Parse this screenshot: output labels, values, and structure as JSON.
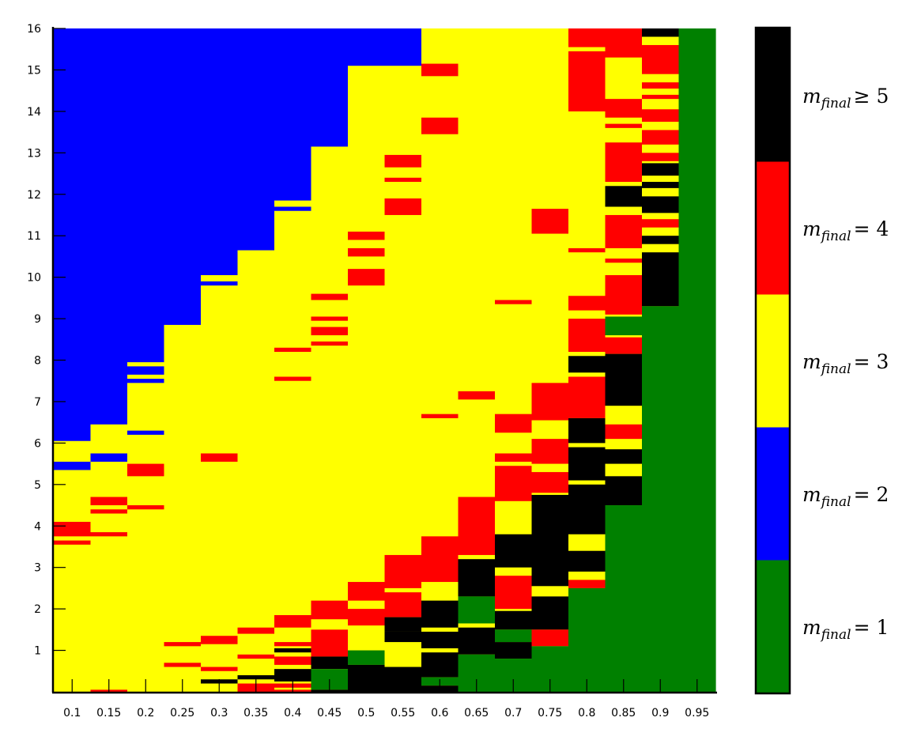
{
  "chart_data": {
    "type": "heatmap",
    "title": "",
    "xlabel": "",
    "ylabel": "",
    "x_ticks": [
      "0.1",
      "0.15",
      "0.2",
      "0.25",
      "0.3",
      "0.35",
      "0.4",
      "0.45",
      "0.5",
      "0.55",
      "0.6",
      "0.65",
      "0.7",
      "0.75",
      "0.8",
      "0.85",
      "0.9",
      "0.95"
    ],
    "y_ticks": [
      "1",
      "2",
      "3",
      "4",
      "5",
      "6",
      "7",
      "8",
      "9",
      "10",
      "11",
      "12",
      "13",
      "14",
      "15",
      "16"
    ],
    "ylim": [
      0,
      16
    ],
    "colorbar": {
      "levels": [
        1,
        2,
        3,
        4,
        5
      ],
      "labels": [
        {
          "main": "m",
          "sub": "final",
          "rel": "= 1"
        },
        {
          "main": "m",
          "sub": "final",
          "rel": "= 2"
        },
        {
          "main": "m",
          "sub": "final",
          "rel": "= 3"
        },
        {
          "main": "m",
          "sub": "final",
          "rel": "= 4"
        },
        {
          "main": "m",
          "sub": "final",
          "rel": "≥ 5"
        }
      ],
      "colors": [
        "#008000",
        "#0000ff",
        "#ffff00",
        "#ff0000",
        "#000000"
      ]
    },
    "columns": [
      {
        "x": "0.1",
        "base": 2,
        "bands": [
          [
            6.05,
            16,
            1
          ],
          [
            5.35,
            5.55,
            1
          ],
          [
            3.75,
            4.1,
            3
          ],
          [
            3.55,
            3.65,
            3
          ]
        ]
      },
      {
        "x": "0.15",
        "base": 2,
        "bands": [
          [
            6.45,
            16,
            1
          ],
          [
            6.3,
            6.4,
            2
          ],
          [
            5.55,
            5.75,
            1
          ],
          [
            4.5,
            4.7,
            3
          ],
          [
            4.3,
            4.4,
            3
          ],
          [
            3.75,
            3.85,
            3
          ],
          [
            0,
            0.05,
            3
          ]
        ]
      },
      {
        "x": "0.2",
        "base": 2,
        "bands": [
          [
            7.95,
            16,
            1
          ],
          [
            7.65,
            7.85,
            1
          ],
          [
            7.45,
            7.55,
            1
          ],
          [
            6.2,
            6.3,
            1
          ],
          [
            5.2,
            5.5,
            3
          ],
          [
            4.4,
            4.5,
            3
          ]
        ]
      },
      {
        "x": "0.25",
        "base": 2,
        "bands": [
          [
            8.85,
            16,
            1
          ],
          [
            1.1,
            1.2,
            3
          ],
          [
            0.6,
            0.7,
            3
          ]
        ]
      },
      {
        "x": "0.3",
        "base": 2,
        "bands": [
          [
            10.05,
            16,
            1
          ],
          [
            9.8,
            9.9,
            1
          ],
          [
            5.55,
            5.75,
            3
          ],
          [
            1.15,
            1.35,
            3
          ],
          [
            0.5,
            0.6,
            3
          ],
          [
            0.2,
            0.3,
            4
          ],
          [
            0.05,
            0.2,
            2
          ]
        ]
      },
      {
        "x": "0.35",
        "base": 2,
        "bands": [
          [
            10.65,
            16,
            1
          ],
          [
            1.4,
            1.55,
            3
          ],
          [
            0.8,
            0.9,
            3
          ],
          [
            0.3,
            0.4,
            4
          ],
          [
            0,
            0.2,
            3
          ]
        ]
      },
      {
        "x": "0.4",
        "base": 2,
        "bands": [
          [
            11.85,
            16,
            1
          ],
          [
            11.6,
            11.7,
            1
          ],
          [
            8.2,
            8.3,
            3
          ],
          [
            7.5,
            7.6,
            3
          ],
          [
            1.55,
            1.85,
            3
          ],
          [
            1.1,
            1.2,
            3
          ],
          [
            0.95,
            1.05,
            4
          ],
          [
            0.65,
            0.85,
            3
          ],
          [
            0.25,
            0.55,
            4
          ],
          [
            0.1,
            0.2,
            3
          ],
          [
            0,
            0.05,
            3
          ]
        ]
      },
      {
        "x": "0.45",
        "base": 2,
        "bands": [
          [
            13.15,
            16,
            1
          ],
          [
            9.45,
            9.6,
            3
          ],
          [
            8.95,
            9.05,
            3
          ],
          [
            8.6,
            8.8,
            3
          ],
          [
            8.35,
            8.45,
            3
          ],
          [
            1.75,
            2.2,
            3
          ],
          [
            0.85,
            1.5,
            3
          ],
          [
            0.55,
            0.85,
            4
          ],
          [
            0.05,
            0.55,
            0
          ],
          [
            0,
            0.05,
            4
          ]
        ]
      },
      {
        "x": "0.5",
        "base": 2,
        "bands": [
          [
            15.1,
            16,
            1
          ],
          [
            10.9,
            11.1,
            3
          ],
          [
            10.5,
            10.7,
            3
          ],
          [
            9.8,
            10.2,
            3
          ],
          [
            2.2,
            2.65,
            3
          ],
          [
            1.6,
            2.0,
            3
          ],
          [
            0.65,
            1.0,
            0
          ],
          [
            0,
            0.65,
            4
          ]
        ]
      },
      {
        "x": "0.55",
        "base": 2,
        "bands": [
          [
            15.1,
            16,
            1
          ],
          [
            12.65,
            12.95,
            3
          ],
          [
            12.3,
            12.4,
            3
          ],
          [
            11.5,
            11.9,
            3
          ],
          [
            2.5,
            3.3,
            3
          ],
          [
            1.8,
            2.4,
            3
          ],
          [
            1.45,
            1.8,
            4
          ],
          [
            1.2,
            1.45,
            4
          ],
          [
            0,
            0.6,
            4
          ]
        ]
      },
      {
        "x": "0.6",
        "base": 2,
        "bands": [
          [
            14.85,
            15.15,
            3
          ],
          [
            13.45,
            13.85,
            3
          ],
          [
            6.6,
            6.7,
            3
          ],
          [
            2.65,
            3.75,
            3
          ],
          [
            1.55,
            2.2,
            4
          ],
          [
            1.05,
            1.45,
            4
          ],
          [
            0.35,
            0.95,
            4
          ],
          [
            0.15,
            0.35,
            0
          ],
          [
            0,
            0.15,
            4
          ]
        ]
      },
      {
        "x": "0.65",
        "base": 2,
        "bands": [
          [
            7.05,
            7.25,
            3
          ],
          [
            3.3,
            4.7,
            3
          ],
          [
            2.3,
            3.2,
            4
          ],
          [
            1.65,
            2.3,
            0
          ],
          [
            0.9,
            1.55,
            4
          ],
          [
            0,
            0.9,
            0
          ]
        ]
      },
      {
        "x": "0.7",
        "base": 2,
        "bands": [
          [
            9.35,
            9.45,
            3
          ],
          [
            6.25,
            6.7,
            3
          ],
          [
            5.55,
            5.75,
            3
          ],
          [
            4.6,
            5.45,
            3
          ],
          [
            3.0,
            3.8,
            4
          ],
          [
            2.0,
            2.8,
            3
          ],
          [
            1.5,
            1.95,
            4
          ],
          [
            1.2,
            1.5,
            0
          ],
          [
            0.8,
            1.2,
            4
          ],
          [
            0,
            0.8,
            0
          ]
        ]
      },
      {
        "x": "0.75",
        "base": 2,
        "bands": [
          [
            11.05,
            11.65,
            3
          ],
          [
            6.55,
            7.45,
            3
          ],
          [
            5.5,
            6.1,
            3
          ],
          [
            4.8,
            5.3,
            3
          ],
          [
            2.55,
            4.75,
            4
          ],
          [
            1.5,
            2.3,
            4
          ],
          [
            1.1,
            1.5,
            3
          ],
          [
            0,
            1.1,
            0
          ]
        ]
      },
      {
        "x": "0.8",
        "base": 2,
        "bands": [
          [
            14.0,
            16,
            3
          ],
          [
            15.45,
            15.55,
            2
          ],
          [
            10.6,
            10.7,
            3
          ],
          [
            9.2,
            9.55,
            3
          ],
          [
            8.2,
            9.0,
            3
          ],
          [
            7.7,
            8.1,
            4
          ],
          [
            6.6,
            7.6,
            3
          ],
          [
            6.0,
            6.6,
            4
          ],
          [
            5.1,
            5.9,
            4
          ],
          [
            3.8,
            5.0,
            4
          ],
          [
            2.9,
            3.4,
            4
          ],
          [
            2.5,
            2.7,
            3
          ],
          [
            0,
            2.5,
            0
          ]
        ]
      },
      {
        "x": "0.85",
        "base": 2,
        "bands": [
          [
            15.3,
            16,
            3
          ],
          [
            13.85,
            14.3,
            3
          ],
          [
            13.6,
            13.7,
            3
          ],
          [
            12.3,
            13.25,
            3
          ],
          [
            11.7,
            12.2,
            4
          ],
          [
            10.7,
            11.5,
            3
          ],
          [
            10.35,
            10.45,
            3
          ],
          [
            9.1,
            10.05,
            3
          ],
          [
            8.6,
            9.05,
            0
          ],
          [
            8.15,
            8.55,
            3
          ],
          [
            6.9,
            8.15,
            4
          ],
          [
            6.1,
            6.45,
            3
          ],
          [
            5.5,
            5.85,
            4
          ],
          [
            4.5,
            5.2,
            4
          ],
          [
            0,
            4.5,
            0
          ]
        ]
      },
      {
        "x": "0.9",
        "base": 2,
        "bands": [
          [
            15.8,
            16,
            4
          ],
          [
            14.9,
            15.6,
            3
          ],
          [
            14.55,
            14.7,
            3
          ],
          [
            14.3,
            14.4,
            3
          ],
          [
            13.75,
            14.05,
            3
          ],
          [
            13.2,
            13.55,
            3
          ],
          [
            12.8,
            13.0,
            3
          ],
          [
            12.45,
            12.75,
            4
          ],
          [
            12.15,
            12.3,
            4
          ],
          [
            11.55,
            11.95,
            4
          ],
          [
            11.2,
            11.4,
            3
          ],
          [
            10.8,
            11.0,
            4
          ],
          [
            9.3,
            10.6,
            4
          ],
          [
            0,
            9.3,
            0
          ]
        ]
      },
      {
        "x": "0.95",
        "base": 0,
        "bands": []
      }
    ]
  }
}
